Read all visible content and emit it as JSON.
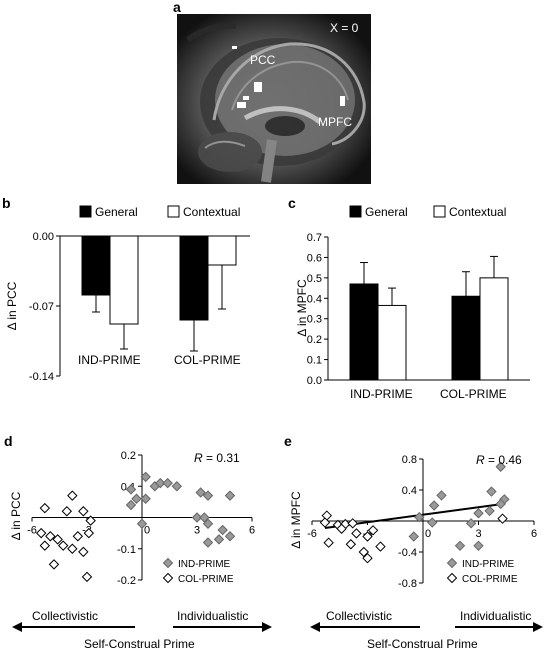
{
  "panels": {
    "a": {
      "letter": "a",
      "x_label": "X = 0",
      "labels": [
        "PCC",
        "MPFC"
      ]
    }
  },
  "chart_data": [
    {
      "panel": "b",
      "type": "bar",
      "ylabel": "Δ in PCC",
      "ylim": [
        -0.14,
        0.0
      ],
      "yticks": [
        "0.00",
        "-0.07",
        "-0.14"
      ],
      "categories": [
        "IND-PRIME",
        "COL-PRIME"
      ],
      "legend_position": "top",
      "series": [
        {
          "name": "General",
          "color": "#000000",
          "values": [
            -0.059,
            -0.084
          ],
          "errors": [
            0.017,
            0.031
          ]
        },
        {
          "name": "Contextual",
          "color": "#ffffff",
          "values": [
            -0.088,
            -0.029
          ],
          "errors": [
            0.025,
            0.044
          ]
        }
      ]
    },
    {
      "panel": "c",
      "type": "bar",
      "ylabel": "Δ in MPFC",
      "ylim": [
        0.0,
        0.7
      ],
      "yticks": [
        "0.0",
        "0.1",
        "0.2",
        "0.3",
        "0.4",
        "0.5",
        "0.6",
        "0.7"
      ],
      "categories": [
        "IND-PRIME",
        "COL-PRIME"
      ],
      "legend_position": "top",
      "series": [
        {
          "name": "General",
          "color": "#000000",
          "values": [
            0.47,
            0.41
          ],
          "errors": [
            0.105,
            0.12
          ]
        },
        {
          "name": "Contextual",
          "color": "#ffffff",
          "values": [
            0.365,
            0.5
          ],
          "errors": [
            0.085,
            0.105
          ]
        }
      ]
    },
    {
      "panel": "d",
      "type": "scatter",
      "ylabel": "Δ in PCC",
      "xlim": [
        -6,
        6
      ],
      "ylim": [
        -0.2,
        0.2
      ],
      "xticks": [
        "-6",
        "-3",
        "0",
        "3",
        "6"
      ],
      "yticks": [
        "0.2",
        "0.1",
        "0",
        "-0.1",
        "-0.2"
      ],
      "annotation": {
        "italic": "R",
        "text": " = 0.31"
      },
      "legend_position": "bottom-right",
      "series": [
        {
          "name": "IND-PRIME",
          "marker": "gray-diamond",
          "points": [
            [
              0.2,
              0.13
            ],
            [
              0.7,
              0.1
            ],
            [
              1.0,
              0.11
            ],
            [
              1.4,
              0.11
            ],
            [
              1.9,
              0.1
            ],
            [
              -0.6,
              0.09
            ],
            [
              -0.3,
              0.06
            ],
            [
              0.2,
              0.06
            ],
            [
              -0.6,
              0.04
            ],
            [
              3.2,
              0.08
            ],
            [
              3.6,
              0.07
            ],
            [
              4.8,
              0.07
            ],
            [
              3.0,
              0.0
            ],
            [
              3.4,
              0.0
            ],
            [
              3.6,
              -0.02
            ],
            [
              4.4,
              -0.04
            ],
            [
              4.8,
              -0.06
            ],
            [
              3.6,
              -0.08
            ],
            [
              4.2,
              -0.07
            ],
            [
              0.0,
              -0.02
            ]
          ]
        },
        {
          "name": "COL-PRIME",
          "marker": "white-diamond",
          "points": [
            [
              -3.8,
              0.07
            ],
            [
              -5.3,
              0.03
            ],
            [
              -4.1,
              0.02
            ],
            [
              -3.2,
              0.02
            ],
            [
              -2.8,
              -0.01
            ],
            [
              -5.5,
              -0.05
            ],
            [
              -5.0,
              -0.06
            ],
            [
              -4.6,
              -0.07
            ],
            [
              -3.5,
              -0.06
            ],
            [
              -2.9,
              -0.05
            ],
            [
              -5.3,
              -0.09
            ],
            [
              -4.3,
              -0.09
            ],
            [
              -3.8,
              -0.1
            ],
            [
              -3.2,
              -0.11
            ],
            [
              -4.8,
              -0.15
            ],
            [
              -3.0,
              -0.19
            ]
          ]
        }
      ]
    },
    {
      "panel": "e",
      "type": "scatter",
      "ylabel": "Δ in MPFC",
      "xlim": [
        -6,
        6
      ],
      "ylim": [
        -0.8,
        0.8
      ],
      "xticks": [
        "-6",
        "-3",
        "0",
        "3",
        "6"
      ],
      "yticks": [
        "0.8",
        "0.4",
        "0",
        "-0.4",
        "-0.8"
      ],
      "annotation": {
        "italic": "R",
        "text": " = 0.46"
      },
      "legend_position": "bottom-right",
      "trendline": {
        "x": [
          -5.3,
          4.3
        ],
        "y": [
          -0.09,
          0.22
        ]
      },
      "series": [
        {
          "name": "IND-PRIME",
          "marker": "gray-diamond",
          "points": [
            [
              4.2,
              0.7
            ],
            [
              1.0,
              0.33
            ],
            [
              3.7,
              0.38
            ],
            [
              4.4,
              0.28
            ],
            [
              0.6,
              0.2
            ],
            [
              3.6,
              0.13
            ],
            [
              4.2,
              0.22
            ],
            [
              -0.2,
              0.05
            ],
            [
              0.5,
              -0.02
            ],
            [
              2.6,
              -0.03
            ],
            [
              3.0,
              0.1
            ],
            [
              -0.5,
              -0.2
            ],
            [
              2.0,
              -0.32
            ],
            [
              3.0,
              -0.32
            ]
          ]
        },
        {
          "name": "COL-PRIME",
          "marker": "white-diamond",
          "points": [
            [
              -5.2,
              0.07
            ],
            [
              -5.3,
              -0.02
            ],
            [
              -4.6,
              -0.05
            ],
            [
              -4.2,
              -0.04
            ],
            [
              -3.8,
              -0.03
            ],
            [
              -4.4,
              -0.1
            ],
            [
              -3.6,
              -0.16
            ],
            [
              -3.0,
              -0.2
            ],
            [
              -2.7,
              -0.12
            ],
            [
              -5.1,
              -0.28
            ],
            [
              -3.9,
              -0.3
            ],
            [
              -3.2,
              -0.4
            ],
            [
              -3.0,
              -0.48
            ],
            [
              -2.3,
              -0.33
            ],
            [
              4.3,
              0.03
            ]
          ]
        }
      ]
    }
  ],
  "footer": {
    "left_label": "Collectivistic",
    "right_label": "Individualistic",
    "axis_title": "Self-Construal Prime"
  }
}
